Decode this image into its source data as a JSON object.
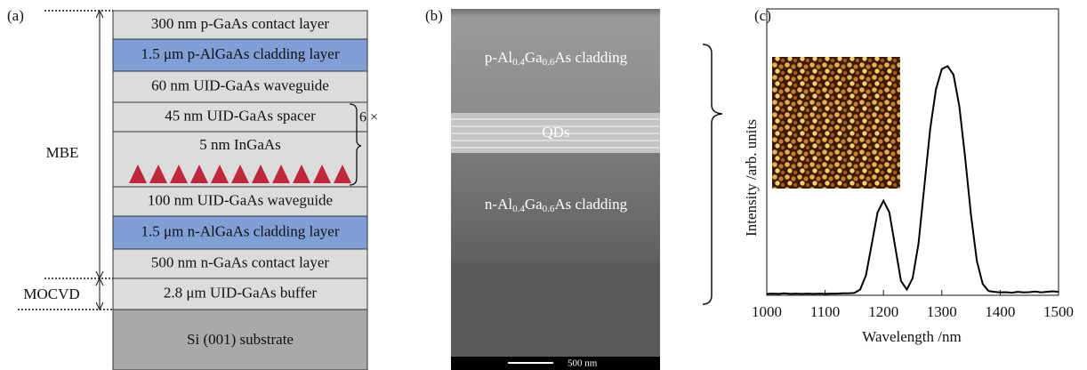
{
  "panel_a": {
    "label": "(a)",
    "layers": [
      "300 nm p-GaAs contact layer",
      "1.5 μm p-AlGaAs cladding layer",
      "60 nm UID-GaAs waveguide",
      "45 nm UID-GaAs spacer",
      "5 nm InGaAs",
      "100 nm UID-GaAs waveguide",
      "1.5 μm n-AlGaAs cladding layer",
      "500 nm n-GaAs contact layer",
      "2.8 μm UID-GaAs buffer",
      "Si (001) substrate"
    ],
    "repeat": "6 ×",
    "growth": [
      "MBE",
      "MOCVD"
    ]
  },
  "panel_b": {
    "label": "(b)",
    "p_cladding": [
      "p-Al",
      "0.4",
      "Ga",
      "0.6",
      "As cladding"
    ],
    "qds": "QDs",
    "n_cladding": [
      "n-Al",
      "0.4",
      "Ga",
      "0.6",
      "As cladding"
    ],
    "scale_bar": "500 nm"
  },
  "chart_data": {
    "type": "line",
    "label": "(c)",
    "x_label": "Wavelength /nm",
    "y_label": "Intensity /arb. units",
    "x": [
      1000,
      1010,
      1020,
      1030,
      1040,
      1050,
      1060,
      1070,
      1080,
      1090,
      1100,
      1110,
      1120,
      1130,
      1140,
      1150,
      1160,
      1170,
      1180,
      1190,
      1200,
      1210,
      1220,
      1230,
      1240,
      1250,
      1260,
      1270,
      1280,
      1290,
      1300,
      1310,
      1320,
      1330,
      1340,
      1350,
      1360,
      1370,
      1380,
      1390,
      1400,
      1410,
      1420,
      1430,
      1440,
      1450,
      1460,
      1470,
      1480,
      1490,
      1500
    ],
    "values": [
      0.005,
      0.006,
      0.005,
      0.007,
      0.005,
      0.006,
      0.005,
      0.006,
      0.005,
      0.006,
      0.005,
      0.006,
      0.006,
      0.007,
      0.007,
      0.008,
      0.02,
      0.07,
      0.18,
      0.29,
      0.33,
      0.29,
      0.17,
      0.05,
      0.02,
      0.06,
      0.18,
      0.38,
      0.58,
      0.72,
      0.79,
      0.8,
      0.77,
      0.66,
      0.48,
      0.28,
      0.12,
      0.04,
      0.015,
      0.012,
      0.01,
      0.011,
      0.009,
      0.012,
      0.01,
      0.011,
      0.013,
      0.01,
      0.012,
      0.014,
      0.012
    ],
    "color": "#000000",
    "xlim": [
      1000,
      1500
    ],
    "ylim": [
      0,
      1
    ],
    "xticks": [
      1000,
      1100,
      1200,
      1300,
      1400,
      1500
    ]
  }
}
